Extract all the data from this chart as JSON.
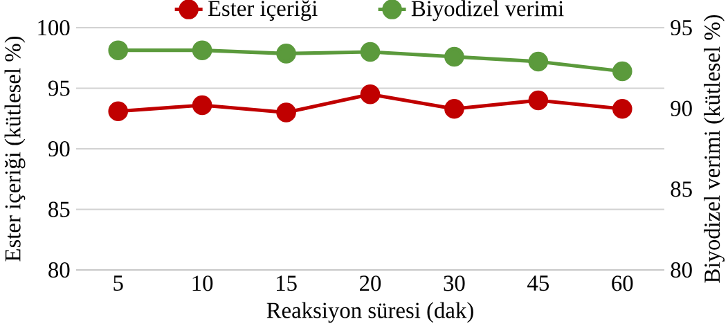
{
  "chart_data": {
    "type": "line",
    "xlabel": "Reaksiyon süresi (dak)",
    "ylabel": "Ester içeriği (kütlesel %)",
    "y2label": "Biyodizel verimi (kütlesel %)",
    "categories": [
      "5",
      "10",
      "15",
      "20",
      "30",
      "45",
      "60"
    ],
    "series": [
      {
        "name": "Ester içeriği",
        "color": "#c00000",
        "values": [
          93.1,
          93.6,
          93.0,
          94.5,
          93.3,
          94.0,
          93.3
        ]
      },
      {
        "name": "Biyodizel verimi",
        "color": "#5b9a3c",
        "axis": "y2",
        "values": [
          93.6,
          93.6,
          93.4,
          93.5,
          93.2,
          92.9,
          92.3
        ]
      }
    ],
    "ylim": [
      80,
      100
    ],
    "yticks": [
      80,
      85,
      90,
      95,
      100
    ],
    "y2lim": [
      80,
      95
    ],
    "y2ticks": [
      80,
      85,
      90,
      95
    ],
    "grid": "y",
    "legend": "top",
    "marker": "circle",
    "line_style": "solid"
  }
}
